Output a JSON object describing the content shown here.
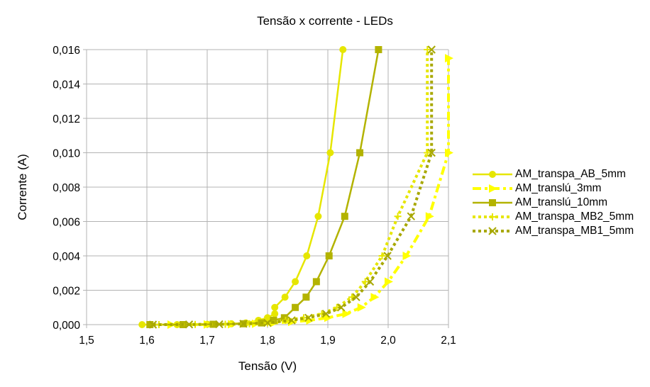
{
  "chart_data": {
    "type": "line",
    "title": "Tensão x corrente - LEDs",
    "xlabel": "Tensão (V)",
    "ylabel": "Corrente (A)",
    "xlim": [
      1.5,
      2.1
    ],
    "ylim": [
      0,
      0.016
    ],
    "grid": true,
    "legend_position": "right",
    "x_ticks": [
      "1,5",
      "1,6",
      "1,7",
      "1,8",
      "1,9",
      "2,0",
      "2,1"
    ],
    "y_ticks": [
      "0,000",
      "0,002",
      "0,004",
      "0,006",
      "0,008",
      "0,010",
      "0,012",
      "0,014",
      "0,016"
    ],
    "series": [
      {
        "name": "AM_transpa_AB_5mm",
        "color": "#e6e600",
        "marker": "circle",
        "line": "solid",
        "x": [
          1.592,
          1.65,
          1.7,
          1.74,
          1.764,
          1.785,
          1.8,
          1.812,
          1.829,
          1.846,
          1.865,
          1.884,
          1.904,
          1.925
        ],
        "y": [
          0.0,
          0.0,
          2e-05,
          5e-05,
          0.0001,
          0.00025,
          0.0004,
          0.00063,
          0.001,
          0.0016,
          0.0025,
          0.004,
          0.0063,
          0.01
        ]
      },
      {
        "name": "AM_translú_3mm",
        "color": "#ffff00",
        "marker": "triangle-right",
        "line": "dash-dot",
        "x": [
          1.64,
          1.7,
          1.74,
          1.78,
          1.81,
          1.84,
          1.87,
          1.9,
          1.93,
          1.955,
          1.977,
          2.0,
          2.03,
          2.068,
          2.1
        ],
        "y": [
          0.0,
          1e-05,
          2e-05,
          5e-05,
          0.0001,
          0.00016,
          0.00025,
          0.0004,
          0.00063,
          0.001,
          0.0016,
          0.0025,
          0.004,
          0.0063,
          0.01
        ]
      },
      {
        "name": "AM_translú_10mm",
        "color": "#b3b300",
        "marker": "square",
        "line": "solid",
        "x": [
          1.605,
          1.66,
          1.71,
          1.76,
          1.79,
          1.81,
          1.828,
          1.846,
          1.864,
          1.881,
          1.902,
          1.928,
          1.953,
          1.984
        ],
        "y": [
          0.0,
          0.0,
          2e-05,
          5e-05,
          0.0001,
          0.00016,
          0.00025,
          0.0004,
          0.00063,
          0.001,
          0.0016,
          0.0025,
          0.004,
          0.0063
        ]
      },
      {
        "name": "AM_transpa_MB2_5mm",
        "color": "#e6e600",
        "marker": "plus",
        "line": "dotted",
        "x": [
          1.62,
          1.68,
          1.73,
          1.77,
          1.8,
          1.83,
          1.86,
          1.89,
          1.915,
          1.94,
          1.962,
          1.99,
          2.016,
          2.065
        ],
        "y": [
          0.0,
          1e-05,
          2e-05,
          5e-05,
          0.0001,
          0.00025,
          0.0004,
          0.00063,
          0.001,
          0.0016,
          0.0025,
          0.004,
          0.0063,
          0.01
        ]
      },
      {
        "name": "AM_transpa_MB1_5mm",
        "color": "#a8a800",
        "marker": "x",
        "line": "dotted",
        "x": [
          1.61,
          1.67,
          1.72,
          1.76,
          1.8,
          1.84,
          1.868,
          1.897,
          1.922,
          1.947,
          1.97,
          1.999,
          2.038,
          2.072
        ],
        "y": [
          0.0,
          1e-05,
          2e-05,
          5e-05,
          0.0001,
          0.00025,
          0.0004,
          0.00063,
          0.001,
          0.0016,
          0.0025,
          0.004,
          0.0063,
          0.01
        ]
      }
    ]
  }
}
